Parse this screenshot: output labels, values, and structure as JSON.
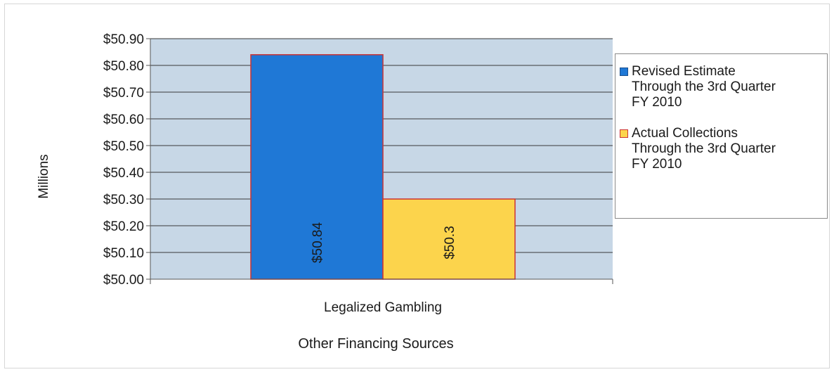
{
  "colors": {
    "plot_background": "#c7d7e6",
    "gridline": "#3a3a3a",
    "series_revised": "#1f78d6",
    "series_actual": "#fcd44c",
    "bar_border": "#cc3333"
  },
  "chart_data": {
    "type": "bar",
    "title": "",
    "ylabel": "Millions",
    "xlabel": "Other Financing Sources",
    "categories": [
      "Legalized Gambling"
    ],
    "ylim": [
      50.0,
      50.9
    ],
    "yticks": [
      50.0,
      50.1,
      50.2,
      50.3,
      50.4,
      50.5,
      50.6,
      50.7,
      50.8,
      50.9
    ],
    "ytick_labels": [
      "$50.00",
      "$50.10",
      "$50.20",
      "$50.30",
      "$50.40",
      "$50.50",
      "$50.60",
      "$50.70",
      "$50.80",
      "$50.90"
    ],
    "grid": true,
    "legend_position": "right",
    "series": [
      {
        "name": "Revised Estimate Through the 3rd Quarter FY 2010",
        "legend_label": "Revised Estimate\nThrough the 3rd Quarter\nFY 2010",
        "values": [
          50.84
        ],
        "data_labels": [
          "$50.84"
        ],
        "color": "#1f78d6"
      },
      {
        "name": "Actual Collections Through the 3rd Quarter FY 2010",
        "legend_label": "Actual Collections\nThrough the 3rd Quarter\nFY 2010",
        "values": [
          50.3
        ],
        "data_labels": [
          "$50.3"
        ],
        "color": "#fcd44c"
      }
    ]
  }
}
